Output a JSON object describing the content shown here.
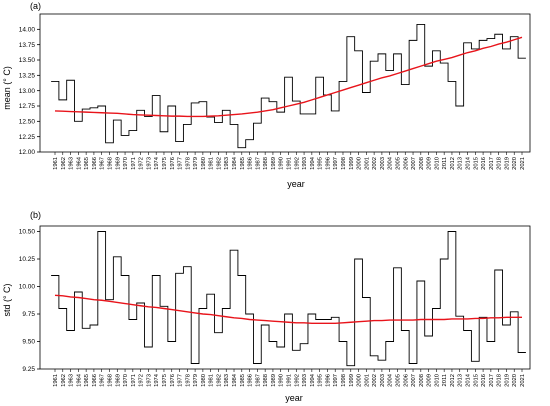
{
  "chart_data": [
    {
      "type": "line",
      "panel_label": "(a)",
      "xlabel": "year",
      "ylabel": "mean (° C)",
      "ylim": [
        12.0,
        14.25
      ],
      "y_ticks": [
        "12.00",
        "12.25",
        "12.50",
        "12.75",
        "13.00",
        "13.25",
        "13.50",
        "13.75",
        "14.00"
      ],
      "x": [
        1961,
        1962,
        1963,
        1964,
        1965,
        1966,
        1967,
        1968,
        1969,
        1970,
        1971,
        1972,
        1973,
        1974,
        1975,
        1976,
        1977,
        1978,
        1979,
        1980,
        1981,
        1982,
        1983,
        1984,
        1985,
        1986,
        1987,
        1988,
        1989,
        1990,
        1991,
        1992,
        1993,
        1994,
        1995,
        1996,
        1997,
        1998,
        1999,
        2000,
        2001,
        2002,
        2003,
        2004,
        2005,
        2006,
        2007,
        2008,
        2009,
        2010,
        2011,
        2012,
        2013,
        2014,
        2015,
        2016,
        2017,
        2018,
        2019,
        2020,
        2021
      ],
      "series": [
        {
          "style": "step",
          "color": "#000000",
          "values": [
            13.15,
            12.85,
            13.17,
            12.5,
            12.7,
            12.72,
            12.75,
            12.15,
            12.52,
            12.27,
            12.35,
            12.68,
            12.58,
            12.92,
            12.33,
            12.75,
            12.17,
            12.45,
            12.8,
            12.82,
            12.57,
            12.48,
            12.68,
            12.45,
            12.07,
            12.2,
            12.47,
            12.88,
            12.82,
            12.65,
            13.22,
            12.83,
            12.62,
            12.62,
            13.22,
            12.93,
            12.67,
            13.15,
            13.88,
            13.65,
            12.97,
            13.48,
            13.6,
            13.33,
            13.6,
            13.1,
            13.82,
            14.08,
            13.4,
            13.65,
            13.45,
            13.15,
            12.75,
            13.78,
            13.68,
            13.82,
            13.85,
            13.92,
            13.68,
            13.88,
            13.53
          ]
        },
        {
          "style": "trend",
          "color": "#e8141b",
          "values": [
            12.67,
            12.665,
            12.66,
            12.655,
            12.65,
            12.645,
            12.64,
            12.635,
            12.63,
            12.62,
            12.61,
            12.605,
            12.6,
            12.595,
            12.59,
            12.585,
            12.585,
            12.58,
            12.58,
            12.58,
            12.585,
            12.59,
            12.6,
            12.61,
            12.62,
            12.635,
            12.65,
            12.67,
            12.69,
            12.72,
            12.75,
            12.78,
            12.81,
            12.85,
            12.89,
            12.93,
            12.97,
            13.01,
            13.05,
            13.09,
            13.13,
            13.17,
            13.21,
            13.24,
            13.28,
            13.32,
            13.36,
            13.4,
            13.44,
            13.48,
            13.51,
            13.54,
            13.58,
            13.62,
            13.65,
            13.69,
            13.72,
            13.76,
            13.79,
            13.83,
            13.87
          ]
        }
      ]
    },
    {
      "type": "line",
      "panel_label": "(b)",
      "xlabel": "year",
      "ylabel": "std (° C)",
      "ylim": [
        9.25,
        10.55
      ],
      "y_ticks": [
        "9.25",
        "9.50",
        "9.75",
        "10.00",
        "10.25",
        "10.50"
      ],
      "x": [
        1961,
        1962,
        1963,
        1964,
        1965,
        1966,
        1967,
        1968,
        1969,
        1970,
        1971,
        1972,
        1973,
        1974,
        1975,
        1976,
        1977,
        1978,
        1979,
        1980,
        1981,
        1982,
        1983,
        1984,
        1985,
        1986,
        1987,
        1988,
        1989,
        1990,
        1991,
        1992,
        1993,
        1994,
        1995,
        1996,
        1997,
        1998,
        1999,
        2000,
        2001,
        2002,
        2003,
        2004,
        2005,
        2006,
        2007,
        2008,
        2009,
        2010,
        2011,
        2012,
        2013,
        2014,
        2015,
        2016,
        2017,
        2018,
        2019,
        2020,
        2021
      ],
      "series": [
        {
          "style": "step",
          "color": "#000000",
          "values": [
            10.1,
            9.8,
            9.6,
            9.95,
            9.62,
            9.65,
            10.5,
            9.88,
            10.27,
            10.1,
            9.7,
            9.85,
            9.45,
            10.1,
            9.82,
            9.5,
            10.12,
            10.18,
            9.3,
            9.8,
            9.93,
            9.58,
            9.8,
            10.33,
            10.1,
            9.75,
            9.3,
            9.65,
            9.5,
            9.45,
            9.75,
            9.42,
            9.48,
            9.75,
            9.7,
            9.7,
            9.72,
            9.5,
            9.28,
            10.25,
            9.9,
            9.37,
            9.33,
            9.5,
            10.17,
            9.6,
            9.3,
            10.05,
            9.55,
            9.8,
            10.25,
            10.5,
            9.73,
            9.6,
            9.32,
            9.72,
            9.5,
            10.15,
            9.65,
            9.77,
            9.4
          ]
        },
        {
          "style": "trend",
          "color": "#e8141b",
          "values": [
            9.92,
            9.915,
            9.905,
            9.9,
            9.89,
            9.88,
            9.875,
            9.865,
            9.855,
            9.845,
            9.835,
            9.825,
            9.815,
            9.81,
            9.8,
            9.79,
            9.78,
            9.77,
            9.76,
            9.75,
            9.745,
            9.735,
            9.725,
            9.715,
            9.71,
            9.7,
            9.695,
            9.69,
            9.685,
            9.68,
            9.675,
            9.67,
            9.67,
            9.665,
            9.665,
            9.665,
            9.665,
            9.67,
            9.675,
            9.68,
            9.685,
            9.69,
            9.69,
            9.695,
            9.695,
            9.695,
            9.695,
            9.7,
            9.7,
            9.7,
            9.7,
            9.705,
            9.705,
            9.705,
            9.71,
            9.71,
            9.715,
            9.715,
            9.72,
            9.72,
            9.72
          ]
        }
      ]
    }
  ]
}
